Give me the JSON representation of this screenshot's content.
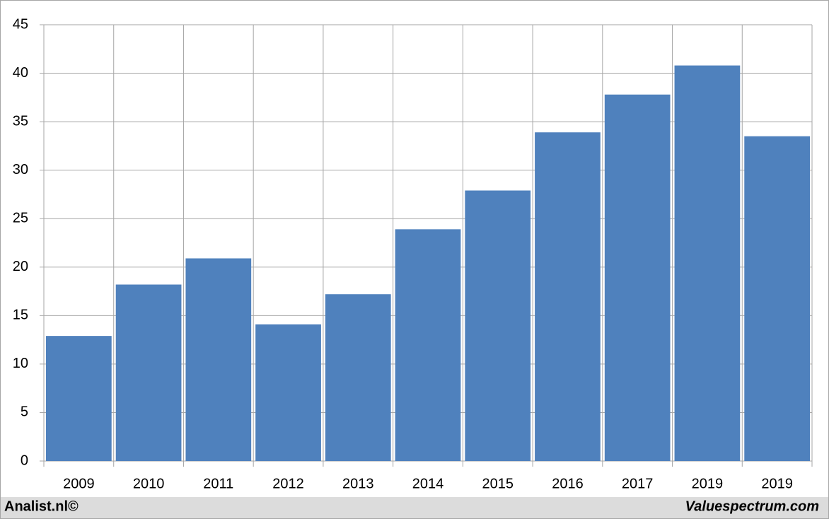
{
  "chart_data": {
    "type": "bar",
    "categories": [
      "2009",
      "2010",
      "2011",
      "2012",
      "2013",
      "2014",
      "2015",
      "2016",
      "2017",
      "2019",
      "2019"
    ],
    "values": [
      12.9,
      18.2,
      20.9,
      14.1,
      17.2,
      23.9,
      27.9,
      33.9,
      37.8,
      40.8,
      33.5
    ],
    "color": "#4f81bd",
    "ylim": [
      0,
      45
    ],
    "yticks": [
      0,
      5,
      10,
      15,
      20,
      25,
      30,
      35,
      40,
      45
    ],
    "grid": true,
    "footer_left": "Analist.nl©",
    "footer_right": "Valuespectrum.com"
  }
}
